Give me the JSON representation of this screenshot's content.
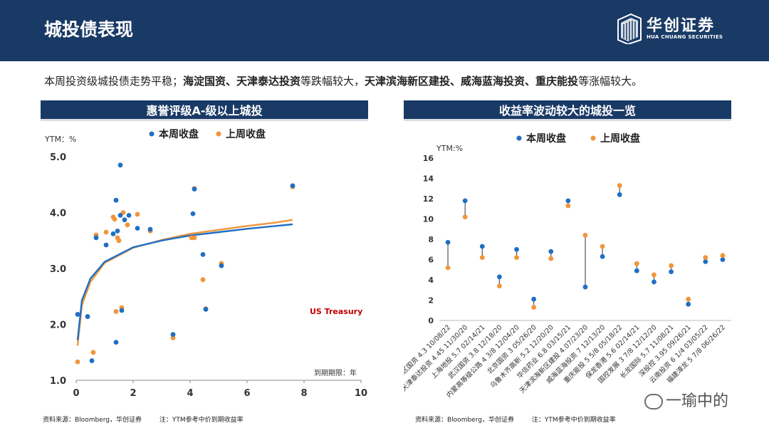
{
  "header": {
    "title": "城投债表现",
    "logo_cn": "华创证券",
    "logo_en": "HUA CHUANG SECURITIES"
  },
  "summary": {
    "part1": "本周投资级城投债走势平稳；",
    "bold1": "海淀国资、天津泰达投资",
    "part2": "等跌幅较大，",
    "bold2": "天津滨海新区建投、威海蓝海投资、重庆能投",
    "part3": "等涨幅较大。"
  },
  "left_panel": {
    "title": "惠誉评级A-级以上城投"
  },
  "right_panel": {
    "title": "收益率波动较大的城投一览"
  },
  "footer": {
    "left_source": "资料来源：Bloomberg，华创证券",
    "left_note": "注：YTM参考中价到期收益率",
    "right_source": "资料来源：Bloomberg，华创证券",
    "right_note": "注：YTM参考中价到期收益率"
  },
  "watermark": "一瑜中的",
  "colors": {
    "this_week": "#1f6fc5",
    "last_week": "#f0953a",
    "header_bg": "#1a3a66",
    "treasury_label": "#c00000"
  },
  "chart_data": [
    {
      "type": "scatter",
      "ylabel": "YTM：%",
      "xlabel": "到期期限：年",
      "xlim": [
        0,
        10
      ],
      "ylim": [
        1.0,
        5.0
      ],
      "xticks": [
        0,
        2,
        4,
        6,
        8,
        10
      ],
      "yticks": [
        "1.0",
        "2.0",
        "3.0",
        "4.0",
        "5.0"
      ],
      "legend": [
        "本周收盘",
        "上周收盘"
      ],
      "annotation": "US Treasury",
      "series": [
        {
          "name": "本周收盘",
          "points": [
            [
              0.05,
              2.18
            ],
            [
              0.4,
              2.14
            ],
            [
              0.55,
              1.35
            ],
            [
              0.7,
              3.55
            ],
            [
              1.05,
              3.42
            ],
            [
              1.3,
              3.62
            ],
            [
              1.4,
              4.22
            ],
            [
              1.4,
              1.68
            ],
            [
              1.45,
              3.67
            ],
            [
              1.55,
              4.85
            ],
            [
              1.55,
              3.95
            ],
            [
              1.6,
              2.25
            ],
            [
              1.7,
              3.87
            ],
            [
              1.85,
              3.95
            ],
            [
              2.15,
              3.72
            ],
            [
              2.6,
              3.7
            ],
            [
              3.4,
              1.82
            ],
            [
              4.1,
              3.98
            ],
            [
              4.15,
              4.42
            ],
            [
              4.45,
              3.25
            ],
            [
              4.55,
              2.27
            ],
            [
              5.1,
              3.05
            ],
            [
              7.6,
              4.48
            ]
          ]
        },
        {
          "name": "上周收盘",
          "points": [
            [
              0.05,
              1.33
            ],
            [
              0.4,
              2.14
            ],
            [
              0.6,
              1.5
            ],
            [
              0.7,
              3.6
            ],
            [
              1.05,
              3.65
            ],
            [
              1.3,
              3.92
            ],
            [
              1.35,
              3.88
            ],
            [
              1.4,
              2.23
            ],
            [
              1.45,
              3.55
            ],
            [
              1.5,
              3.5
            ],
            [
              1.6,
              2.3
            ],
            [
              1.65,
              4.0
            ],
            [
              1.8,
              3.78
            ],
            [
              2.15,
              3.97
            ],
            [
              2.6,
              3.67
            ],
            [
              3.4,
              1.76
            ],
            [
              4.05,
              3.55
            ],
            [
              4.15,
              3.55
            ],
            [
              4.15,
              4.43
            ],
            [
              4.45,
              2.8
            ],
            [
              4.55,
              2.28
            ],
            [
              5.1,
              3.09
            ],
            [
              7.6,
              4.46
            ]
          ]
        },
        {
          "name": "本周收盘",
          "curve": [
            [
              0.05,
              1.72
            ],
            [
              0.2,
              2.43
            ],
            [
              0.5,
              2.82
            ],
            [
              1.0,
              3.12
            ],
            [
              2.0,
              3.38
            ],
            [
              3.0,
              3.5
            ],
            [
              4.0,
              3.59
            ],
            [
              5.0,
              3.65
            ],
            [
              6.0,
              3.71
            ],
            [
              7.0,
              3.76
            ],
            [
              7.6,
              3.79
            ]
          ]
        },
        {
          "name": "上周收盘",
          "curve": [
            [
              0.05,
              1.62
            ],
            [
              0.2,
              2.34
            ],
            [
              0.5,
              2.76
            ],
            [
              1.0,
              3.1
            ],
            [
              2.0,
              3.37
            ],
            [
              3.0,
              3.51
            ],
            [
              4.0,
              3.62
            ],
            [
              5.0,
              3.69
            ],
            [
              6.0,
              3.76
            ],
            [
              7.0,
              3.82
            ],
            [
              7.6,
              3.87
            ]
          ]
        }
      ]
    },
    {
      "type": "dot-range",
      "ylabel": "YTM:%",
      "ylim": [
        0,
        16
      ],
      "yticks": [
        0,
        2,
        4,
        6,
        8,
        10,
        12,
        14,
        16
      ],
      "legend": [
        "本周收盘",
        "上周收盘"
      ],
      "categories": [
        "海淀区国资 4.3 10/08/22",
        "天津泰达投资 4.45 11/30/20",
        "上海地投 5.7 02/14/21",
        "武汉国资 3.8 12/18/20",
        "内蒙高等级公路 4 3/8 12/04/20",
        "北京国资 3 05/26/20",
        "乌鲁木齐高新 5.2 12/20/20",
        "华信药业 6.8 03/15/21",
        "天津滨海新区建投 4.07/23/20",
        "威海蓝海投资 7 12/13/20",
        "重庆能投 5 5/8 05/18/22",
        "保龙香港 5.6 02/14/21",
        "国控发展 3 7/8 12/12/20",
        "长龙国际 5.7 11/08/21",
        "深投控 3.95 09/26/21",
        "云南投资 6 1/4 03/05/22",
        "福建漳龙 5 7/8 06/26/22"
      ],
      "series": [
        {
          "name": "本周收盘",
          "values": [
            7.7,
            11.8,
            7.3,
            4.3,
            7.0,
            2.1,
            6.8,
            11.8,
            3.3,
            6.3,
            12.4,
            4.9,
            3.8,
            4.8,
            1.6,
            5.8,
            6.0
          ]
        },
        {
          "name": "上周收盘",
          "values": [
            5.2,
            10.2,
            6.2,
            3.4,
            6.2,
            1.3,
            6.1,
            11.3,
            8.4,
            7.3,
            13.3,
            5.6,
            4.5,
            5.4,
            2.1,
            6.2,
            6.4
          ]
        }
      ]
    }
  ]
}
